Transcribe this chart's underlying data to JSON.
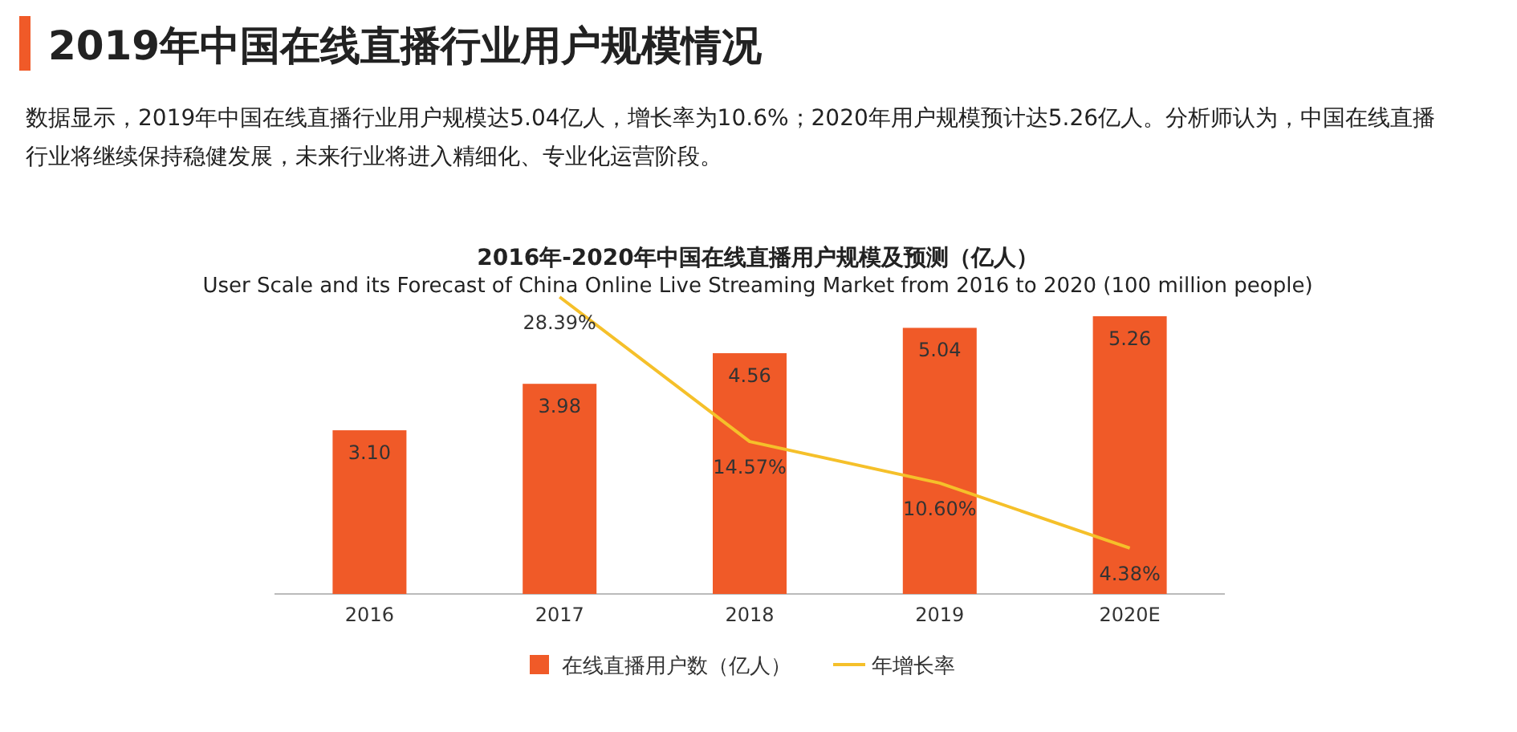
{
  "chart_data": {
    "type": "bar",
    "title": "2019年中国在线直播行业用户规模情况",
    "subtitle": "数据显示，2019年中国在线直播行业用户规模达5.04亿人，增长率为10.6%；2020年用户规模预计达5.26亿人。分析师认为，中国在线直播行业将继续保持稳健发展，未来行业将进入精细化、专业化运营阶段。",
    "annotations": [
      "2016年-2020年中国在线直播用户规模及预测（亿人）",
      "User Scale and its Forecast of China Online Live Streaming Market from 2016 to 2020 (100 million people)"
    ],
    "categories": [
      "2016",
      "2017",
      "2018",
      "2019",
      "2020E"
    ],
    "series": [
      {
        "name": "在线直播用户数（亿人）",
        "color": "#f05a28",
        "values": [
          3.1,
          3.98,
          4.56,
          5.04,
          5.26
        ],
        "value_labels": [
          "3.10",
          "3.98",
          "4.56",
          "5.04",
          "5.26"
        ]
      },
      {
        "name": "年增长率",
        "type": "line",
        "axis": "y2",
        "color": "#f5c02a",
        "values": [
          null,
          28.39,
          14.57,
          10.6,
          4.38
        ],
        "value_labels": [
          null,
          "28.39%",
          "14.57%",
          "10.60%",
          "4.38%"
        ]
      }
    ],
    "tick_labels": "x",
    "legend": "bottom",
    "marker": "none"
  }
}
